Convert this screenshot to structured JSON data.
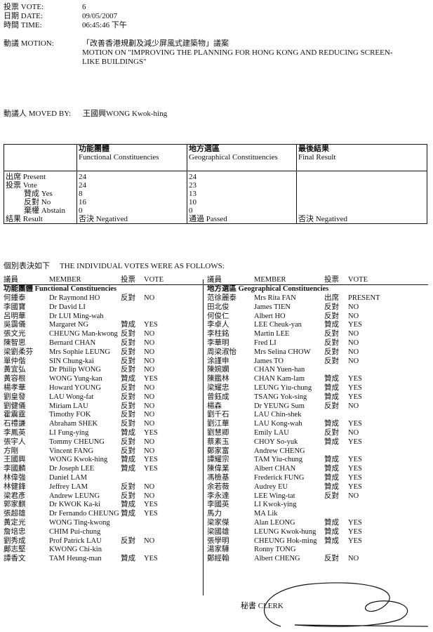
{
  "header": {
    "vote_label": "投票 VOTE:",
    "vote_value": "6",
    "date_label": "日期 DATE:",
    "date_value": "09/05/2007",
    "time_label": "時間 TIME:",
    "time_value": "06:45:46 下午",
    "motion_label": "動議 MOTION:",
    "motion_zh": "「改善香港規劃及減少屏風式建築物」議案",
    "motion_en": "MOTION ON \"IMPROVING THE PLANNING FOR HONG KONG AND REDUCING SCREEN-LIKE BUILDINGS\"",
    "moved_by_label": "動議人 MOVED BY:",
    "moved_by_value": "王國興WONG Kwok-hing"
  },
  "results": {
    "columns": [
      {
        "zh": "功能團體",
        "en": "Functional Constituencies"
      },
      {
        "zh": "地方選區",
        "en": "Geographical Constituencies"
      },
      {
        "zh": "最後結果",
        "en": "Final Result"
      }
    ],
    "row_labels": [
      "出席 Present",
      "投票 Vote",
      "贊成 Yes",
      "反對 No",
      "棄權 Abstain",
      "結果 Result"
    ],
    "functional": [
      "24",
      "24",
      "8",
      "16",
      "0",
      "否決 Negatived"
    ],
    "geographical": [
      "24",
      "23",
      "13",
      "10",
      "0",
      "通過 Passed"
    ],
    "final": [
      "",
      "",
      "",
      "",
      "",
      "否決 Negatived"
    ]
  },
  "individual": {
    "heading_zh": "個別表決如下",
    "heading_en": "THE INDIVIDUAL VOTES WERE AS FOLLOWS:",
    "col_headers": [
      "議員",
      "MEMBER",
      "投票",
      "VOTE"
    ],
    "functional_title": "功能團體 Functional Constituencies",
    "geographical_title": "地方選區 Geographical Constituencies",
    "functional": [
      [
        "何鍾泰",
        "Dr Raymond HO",
        "反對",
        "NO"
      ],
      [
        "李國寶",
        "Dr David LI",
        "",
        ""
      ],
      [
        "呂明華",
        "Dr LUI Ming-wah",
        "",
        ""
      ],
      [
        "吳靄儀",
        "Margaret NG",
        "贊成",
        "YES"
      ],
      [
        "張文光",
        "CHEUNG Man-kwong",
        "反對",
        "NO"
      ],
      [
        "陳智思",
        "Bernard CHAN",
        "反對",
        "NO"
      ],
      [
        "梁劉柔芬",
        "Mrs Sophie LEUNG",
        "反對",
        "NO"
      ],
      [
        "單仲偕",
        "SIN Chung-kai",
        "反對",
        "NO"
      ],
      [
        "黃宜弘",
        "Dr Philip WONG",
        "反對",
        "NO"
      ],
      [
        "黃容根",
        "WONG Yung-kan",
        "贊成",
        "YES"
      ],
      [
        "楊孝華",
        "Howard YOUNG",
        "反對",
        "NO"
      ],
      [
        "劉皇發",
        "LAU Wong-fat",
        "反對",
        "NO"
      ],
      [
        "劉健儀",
        "Miriam LAU",
        "反對",
        "NO"
      ],
      [
        "霍震霆",
        "Timothy FOK",
        "反對",
        "NO"
      ],
      [
        "石禮謙",
        "Abraham SHEK",
        "反對",
        "NO"
      ],
      [
        "李鳳英",
        "LI Fung-ying",
        "贊成",
        "YES"
      ],
      [
        "張宇人",
        "Tommy CHEUNG",
        "反對",
        "NO"
      ],
      [
        "方剛",
        "Vincent FANG",
        "反對",
        "NO"
      ],
      [
        "王國興",
        "WONG Kwok-hing",
        "贊成",
        "YES"
      ],
      [
        "李國麟",
        "Dr Joseph LEE",
        "贊成",
        "YES"
      ],
      [
        "林偉強",
        "Daniel LAM",
        "",
        ""
      ],
      [
        "林健鋒",
        "Jeffrey LAM",
        "反對",
        "NO"
      ],
      [
        "梁君彥",
        "Andrew LEUNG",
        "反對",
        "NO"
      ],
      [
        "郭家麒",
        "Dr KWOK Ka-ki",
        "贊成",
        "YES"
      ],
      [
        "張超雄",
        "Dr Fernando CHEUNG",
        "贊成",
        "YES"
      ],
      [
        "黃定光",
        "WONG Ting-kwong",
        "",
        ""
      ],
      [
        "詹培忠",
        "CHIM Pui-chung",
        "",
        ""
      ],
      [
        "劉秀成",
        "Prof Patrick LAU",
        "反對",
        "NO"
      ],
      [
        "鄺志堅",
        "KWONG Chi-kin",
        "",
        ""
      ],
      [
        "譚香文",
        "TAM Heung-man",
        "贊成",
        "YES"
      ]
    ],
    "geographical": [
      [
        "范徐麗泰",
        "Mrs Rita FAN",
        "出席",
        "PRESENT"
      ],
      [
        "田北俊",
        "James TIEN",
        "反對",
        "NO"
      ],
      [
        "何俊仁",
        "Albert HO",
        "反對",
        "NO"
      ],
      [
        "李卓人",
        "LEE Cheuk-yan",
        "贊成",
        "YES"
      ],
      [
        "李柱銘",
        "Martin LEE",
        "反對",
        "NO"
      ],
      [
        "李華明",
        "Fred LI",
        "反對",
        "NO"
      ],
      [
        "周梁淑怡",
        "Mrs Selina CHOW",
        "反對",
        "NO"
      ],
      [
        "涂謹申",
        "James TO",
        "反對",
        "NO"
      ],
      [
        "陳婉嫻",
        "CHAN Yuen-han",
        "",
        ""
      ],
      [
        "陳鑑林",
        "CHAN Kam-lam",
        "贊成",
        "YES"
      ],
      [
        "梁耀忠",
        "LEUNG Yiu-chung",
        "贊成",
        "YES"
      ],
      [
        "曾鈺成",
        "TSANG Yok-sing",
        "贊成",
        "YES"
      ],
      [
        "楊森",
        "Dr YEUNG Sum",
        "反對",
        "NO"
      ],
      [
        "劉千石",
        "LAU Chin-shek",
        "",
        ""
      ],
      [
        "劉江華",
        "LAU Kong-wah",
        "贊成",
        "YES"
      ],
      [
        "劉慧卿",
        "Emily LAU",
        "反對",
        "NO"
      ],
      [
        "蔡素玉",
        "CHOY So-yuk",
        "贊成",
        "YES"
      ],
      [
        "鄭家富",
        "Andrew CHENG",
        "",
        ""
      ],
      [
        "譚耀宗",
        "TAM Yiu-chung",
        "贊成",
        "YES"
      ],
      [
        "陳偉業",
        "Albert CHAN",
        "贊成",
        "YES"
      ],
      [
        "馮檢基",
        "Frederick FUNG",
        "贊成",
        "YES"
      ],
      [
        "余若薇",
        "Audrey EU",
        "贊成",
        "YES"
      ],
      [
        "李永達",
        "LEE Wing-tat",
        "反對",
        "NO"
      ],
      [
        "李國英",
        "LI Kwok-ying",
        "",
        ""
      ],
      [
        "馬力",
        "MA Lik",
        "",
        ""
      ],
      [
        "梁家傑",
        "Alan LEONG",
        "贊成",
        "YES"
      ],
      [
        "梁國雄",
        "LEUNG Kwok-hung",
        "贊成",
        "YES"
      ],
      [
        "張學明",
        "CHEUNG Hok-ming",
        "贊成",
        "YES"
      ],
      [
        "湯家驊",
        "Ronny TONG",
        "",
        ""
      ],
      [
        "鄭經翰",
        "Albert CHENG",
        "反對",
        "NO"
      ]
    ]
  },
  "footer": {
    "clerk_label": "秘書 CLERK"
  }
}
